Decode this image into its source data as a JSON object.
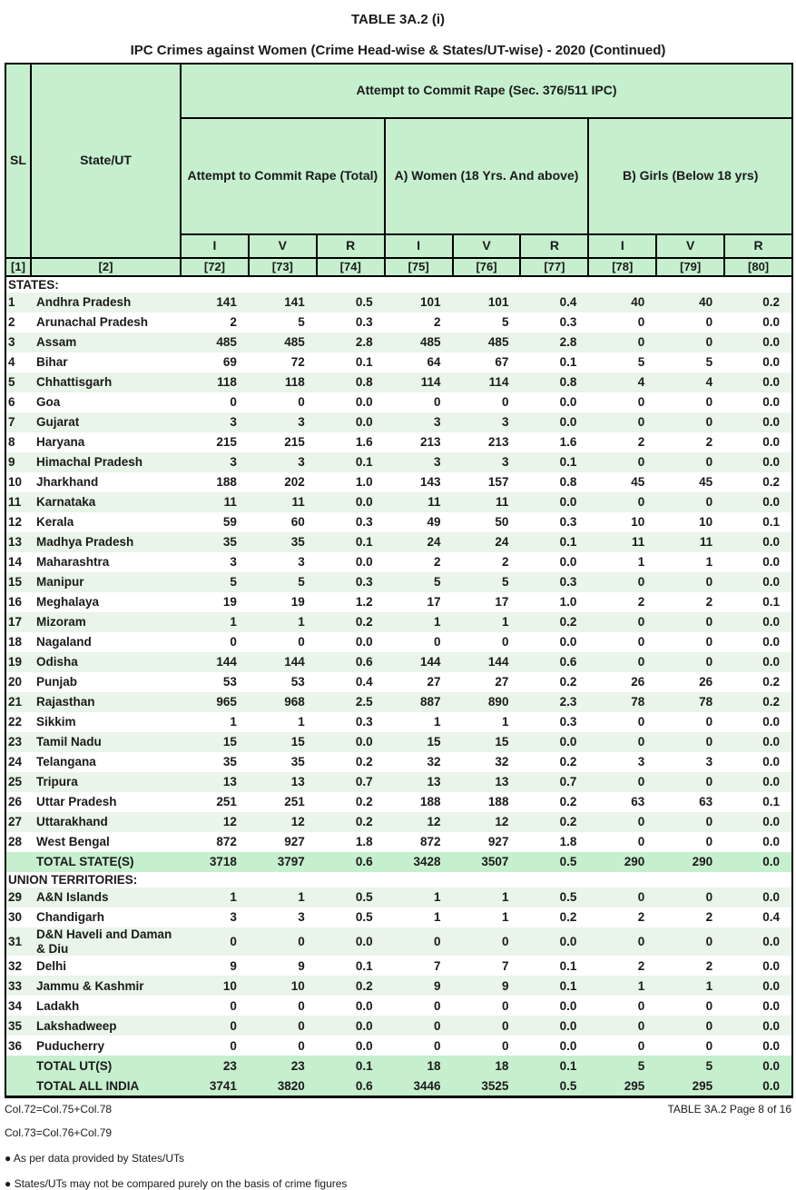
{
  "page": {
    "title": "TABLE 3A.2 (i)",
    "subtitle": "IPC Crimes against Women (Crime Head-wise & States/UT-wise) - 2020 (Continued)"
  },
  "colors": {
    "header_green": "#c6efce",
    "stripe_green": "#e8f5e8",
    "border_black": "#000000"
  },
  "table": {
    "header": {
      "sl": "SL",
      "state_ut": "State/UT",
      "group": "Attempt to Commit Rape (Sec. 376/511 IPC)",
      "subgroups": [
        "Attempt to Commit Rape (Total)",
        "A) Women (18 Yrs. And above)",
        "B) Girls (Below 18 yrs)"
      ],
      "ivr": [
        "I",
        "V",
        "R",
        "I",
        "V",
        "R",
        "I",
        "V",
        "R"
      ],
      "col_numbers": [
        "[1]",
        "[2]",
        "[72]",
        "[73]",
        "[74]",
        "[75]",
        "[76]",
        "[77]",
        "[78]",
        "[79]",
        "[80]"
      ]
    },
    "rows": [
      {
        "type": "section",
        "label": "STATES:"
      },
      {
        "type": "data",
        "sl": "1",
        "name": "Andhra Pradesh",
        "values": [
          "141",
          "141",
          "0.5",
          "101",
          "101",
          "0.4",
          "40",
          "40",
          "0.2"
        ]
      },
      {
        "type": "data",
        "sl": "2",
        "name": "Arunachal Pradesh",
        "values": [
          "2",
          "5",
          "0.3",
          "2",
          "5",
          "0.3",
          "0",
          "0",
          "0.0"
        ]
      },
      {
        "type": "data",
        "sl": "3",
        "name": "Assam",
        "values": [
          "485",
          "485",
          "2.8",
          "485",
          "485",
          "2.8",
          "0",
          "0",
          "0.0"
        ]
      },
      {
        "type": "data",
        "sl": "4",
        "name": "Bihar",
        "values": [
          "69",
          "72",
          "0.1",
          "64",
          "67",
          "0.1",
          "5",
          "5",
          "0.0"
        ]
      },
      {
        "type": "data",
        "sl": "5",
        "name": "Chhattisgarh",
        "values": [
          "118",
          "118",
          "0.8",
          "114",
          "114",
          "0.8",
          "4",
          "4",
          "0.0"
        ]
      },
      {
        "type": "data",
        "sl": "6",
        "name": "Goa",
        "values": [
          "0",
          "0",
          "0.0",
          "0",
          "0",
          "0.0",
          "0",
          "0",
          "0.0"
        ]
      },
      {
        "type": "data",
        "sl": "7",
        "name": "Gujarat",
        "values": [
          "3",
          "3",
          "0.0",
          "3",
          "3",
          "0.0",
          "0",
          "0",
          "0.0"
        ]
      },
      {
        "type": "data",
        "sl": "8",
        "name": "Haryana",
        "values": [
          "215",
          "215",
          "1.6",
          "213",
          "213",
          "1.6",
          "2",
          "2",
          "0.0"
        ]
      },
      {
        "type": "data",
        "sl": "9",
        "name": "Himachal Pradesh",
        "values": [
          "3",
          "3",
          "0.1",
          "3",
          "3",
          "0.1",
          "0",
          "0",
          "0.0"
        ]
      },
      {
        "type": "data",
        "sl": "10",
        "name": "Jharkhand",
        "values": [
          "188",
          "202",
          "1.0",
          "143",
          "157",
          "0.8",
          "45",
          "45",
          "0.2"
        ]
      },
      {
        "type": "data",
        "sl": "11",
        "name": "Karnataka",
        "values": [
          "11",
          "11",
          "0.0",
          "11",
          "11",
          "0.0",
          "0",
          "0",
          "0.0"
        ]
      },
      {
        "type": "data",
        "sl": "12",
        "name": "Kerala",
        "values": [
          "59",
          "60",
          "0.3",
          "49",
          "50",
          "0.3",
          "10",
          "10",
          "0.1"
        ]
      },
      {
        "type": "data",
        "sl": "13",
        "name": "Madhya Pradesh",
        "values": [
          "35",
          "35",
          "0.1",
          "24",
          "24",
          "0.1",
          "11",
          "11",
          "0.0"
        ]
      },
      {
        "type": "data",
        "sl": "14",
        "name": "Maharashtra",
        "values": [
          "3",
          "3",
          "0.0",
          "2",
          "2",
          "0.0",
          "1",
          "1",
          "0.0"
        ]
      },
      {
        "type": "data",
        "sl": "15",
        "name": "Manipur",
        "values": [
          "5",
          "5",
          "0.3",
          "5",
          "5",
          "0.3",
          "0",
          "0",
          "0.0"
        ]
      },
      {
        "type": "data",
        "sl": "16",
        "name": "Meghalaya",
        "values": [
          "19",
          "19",
          "1.2",
          "17",
          "17",
          "1.0",
          "2",
          "2",
          "0.1"
        ]
      },
      {
        "type": "data",
        "sl": "17",
        "name": "Mizoram",
        "values": [
          "1",
          "1",
          "0.2",
          "1",
          "1",
          "0.2",
          "0",
          "0",
          "0.0"
        ]
      },
      {
        "type": "data",
        "sl": "18",
        "name": "Nagaland",
        "values": [
          "0",
          "0",
          "0.0",
          "0",
          "0",
          "0.0",
          "0",
          "0",
          "0.0"
        ]
      },
      {
        "type": "data",
        "sl": "19",
        "name": "Odisha",
        "values": [
          "144",
          "144",
          "0.6",
          "144",
          "144",
          "0.6",
          "0",
          "0",
          "0.0"
        ]
      },
      {
        "type": "data",
        "sl": "20",
        "name": "Punjab",
        "values": [
          "53",
          "53",
          "0.4",
          "27",
          "27",
          "0.2",
          "26",
          "26",
          "0.2"
        ]
      },
      {
        "type": "data",
        "sl": "21",
        "name": "Rajasthan",
        "values": [
          "965",
          "968",
          "2.5",
          "887",
          "890",
          "2.3",
          "78",
          "78",
          "0.2"
        ]
      },
      {
        "type": "data",
        "sl": "22",
        "name": "Sikkim",
        "values": [
          "1",
          "1",
          "0.3",
          "1",
          "1",
          "0.3",
          "0",
          "0",
          "0.0"
        ]
      },
      {
        "type": "data",
        "sl": "23",
        "name": "Tamil Nadu",
        "values": [
          "15",
          "15",
          "0.0",
          "15",
          "15",
          "0.0",
          "0",
          "0",
          "0.0"
        ]
      },
      {
        "type": "data",
        "sl": "24",
        "name": "Telangana",
        "values": [
          "35",
          "35",
          "0.2",
          "32",
          "32",
          "0.2",
          "3",
          "3",
          "0.0"
        ]
      },
      {
        "type": "data",
        "sl": "25",
        "name": "Tripura",
        "values": [
          "13",
          "13",
          "0.7",
          "13",
          "13",
          "0.7",
          "0",
          "0",
          "0.0"
        ]
      },
      {
        "type": "data",
        "sl": "26",
        "name": "Uttar Pradesh",
        "values": [
          "251",
          "251",
          "0.2",
          "188",
          "188",
          "0.2",
          "63",
          "63",
          "0.1"
        ]
      },
      {
        "type": "data",
        "sl": "27",
        "name": "Uttarakhand",
        "values": [
          "12",
          "12",
          "0.2",
          "12",
          "12",
          "0.2",
          "0",
          "0",
          "0.0"
        ]
      },
      {
        "type": "data",
        "sl": "28",
        "name": "West Bengal",
        "values": [
          "872",
          "927",
          "1.8",
          "872",
          "927",
          "1.8",
          "0",
          "0",
          "0.0"
        ]
      },
      {
        "type": "total",
        "sl": "",
        "name": "TOTAL STATE(S)",
        "values": [
          "3718",
          "3797",
          "0.6",
          "3428",
          "3507",
          "0.5",
          "290",
          "290",
          "0.0"
        ]
      },
      {
        "type": "section",
        "label": "UNION TERRITORIES:"
      },
      {
        "type": "data",
        "sl": "29",
        "name": "A&N Islands",
        "values": [
          "1",
          "1",
          "0.5",
          "1",
          "1",
          "0.5",
          "0",
          "0",
          "0.0"
        ]
      },
      {
        "type": "data",
        "sl": "30",
        "name": "Chandigarh",
        "values": [
          "3",
          "3",
          "0.5",
          "1",
          "1",
          "0.2",
          "2",
          "2",
          "0.4"
        ]
      },
      {
        "type": "data",
        "sl": "31",
        "name": "D&N Haveli and Daman & Diu",
        "values": [
          "0",
          "0",
          "0.0",
          "0",
          "0",
          "0.0",
          "0",
          "0",
          "0.0"
        ]
      },
      {
        "type": "data",
        "sl": "32",
        "name": "Delhi",
        "values": [
          "9",
          "9",
          "0.1",
          "7",
          "7",
          "0.1",
          "2",
          "2",
          "0.0"
        ]
      },
      {
        "type": "data",
        "sl": "33",
        "name": "Jammu & Kashmir",
        "values": [
          "10",
          "10",
          "0.2",
          "9",
          "9",
          "0.1",
          "1",
          "1",
          "0.0"
        ]
      },
      {
        "type": "data",
        "sl": "34",
        "name": "Ladakh",
        "values": [
          "0",
          "0",
          "0.0",
          "0",
          "0",
          "0.0",
          "0",
          "0",
          "0.0"
        ]
      },
      {
        "type": "data",
        "sl": "35",
        "name": "Lakshadweep",
        "values": [
          "0",
          "0",
          "0.0",
          "0",
          "0",
          "0.0",
          "0",
          "0",
          "0.0"
        ]
      },
      {
        "type": "data",
        "sl": "36",
        "name": "Puducherry",
        "values": [
          "0",
          "0",
          "0.0",
          "0",
          "0",
          "0.0",
          "0",
          "0",
          "0.0"
        ]
      },
      {
        "type": "total",
        "sl": "",
        "name": "TOTAL UT(S)",
        "values": [
          "23",
          "23",
          "0.1",
          "18",
          "18",
          "0.1",
          "5",
          "5",
          "0.0"
        ]
      },
      {
        "type": "total",
        "sl": "",
        "name": "TOTAL ALL INDIA",
        "values": [
          "3741",
          "3820",
          "0.6",
          "3446",
          "3525",
          "0.5",
          "295",
          "295",
          "0.0"
        ]
      }
    ]
  },
  "footer": {
    "formula1": "Col.72=Col.75+Col.78",
    "page_label": "TABLE 3A.2 Page 8 of 16",
    "formula2": "Col.73=Col.76+Col.79",
    "note1": "● As per data provided by States/UTs",
    "note2": "● States/UTs may not be compared purely on the basis of crime figures"
  }
}
